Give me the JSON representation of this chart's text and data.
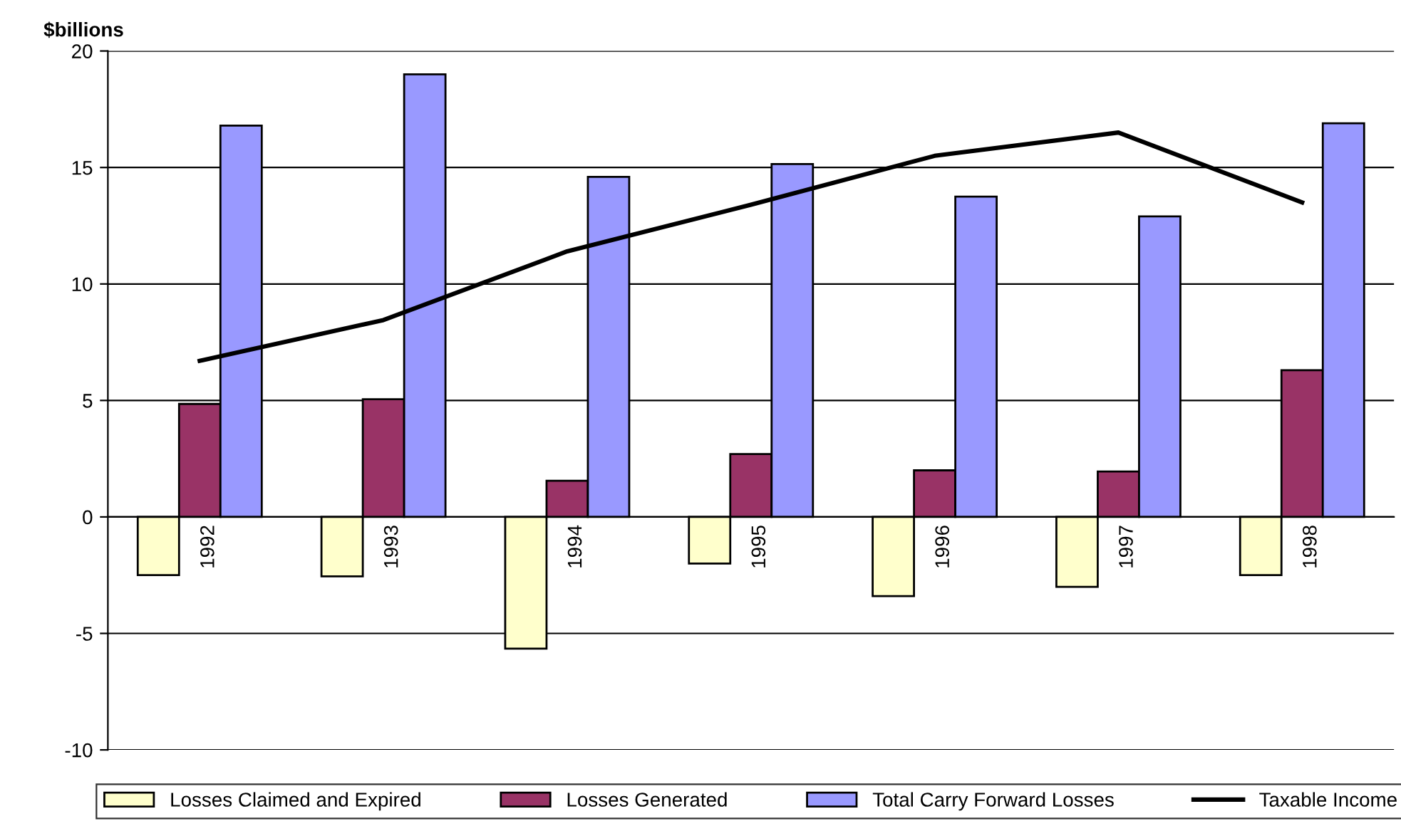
{
  "chart_data": {
    "type": "bar",
    "ylabel": "$billions",
    "categories": [
      "1992",
      "1993",
      "1994",
      "1995",
      "1996",
      "1997",
      "1998"
    ],
    "series": [
      {
        "name": "Losses Claimed and Expired",
        "color": "#ffffcc",
        "values": [
          -2.5,
          -2.55,
          -5.65,
          -2.0,
          -3.4,
          -3.0,
          -2.5
        ]
      },
      {
        "name": "Losses Generated",
        "color": "#993366",
        "values": [
          4.85,
          5.05,
          1.55,
          2.7,
          2.0,
          1.95,
          6.3
        ]
      },
      {
        "name": "Total Carry Forward Losses",
        "color": "#9999ff",
        "values": [
          16.8,
          19.0,
          14.6,
          15.15,
          13.75,
          12.9,
          16.9
        ]
      },
      {
        "name": "Taxable Income",
        "type": "line",
        "color": "#000000",
        "values": [
          6.7,
          8.45,
          11.4,
          13.4,
          15.5,
          16.5,
          13.5
        ]
      }
    ],
    "ylim": [
      -10,
      20
    ],
    "yticks": [
      -10,
      -5,
      0,
      5,
      10,
      15,
      20
    ],
    "grid": "y",
    "legend": "bottom"
  }
}
